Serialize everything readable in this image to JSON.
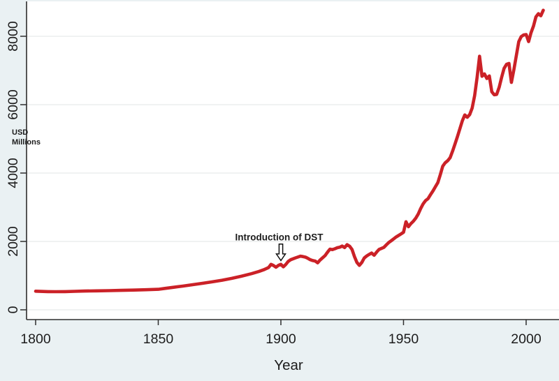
{
  "figure": {
    "background_color": "#eaf1f3",
    "plot_background": "#ffffff",
    "grid_color": "#e7e9ea",
    "axis_color": "#2e2e2e",
    "text_color": "#1c1c1c"
  },
  "chart_data": {
    "type": "line",
    "title": "",
    "xlabel": "Year",
    "ylabel": "USD Millions",
    "ylabel_lines": [
      "USD",
      "Millions"
    ],
    "legend": "none",
    "grid": true,
    "x_ticks": [
      1800,
      1850,
      1900,
      1950,
      2000
    ],
    "y_ticks": [
      0,
      2000,
      4000,
      6000,
      8000
    ],
    "xlim": [
      1796.3,
      2013.4
    ],
    "ylim": [
      -286,
      9020
    ],
    "line_color": "#cb2127",
    "annotation": {
      "text": "Introduction of DST",
      "year": 1900,
      "text_value": 2120,
      "arrow_tail_value": 1925,
      "arrow_tip_value": 1440
    },
    "series": [
      {
        "name": "USD Millions",
        "points": [
          [
            1800,
            545
          ],
          [
            1802,
            538
          ],
          [
            1805,
            532
          ],
          [
            1808,
            530
          ],
          [
            1812,
            533
          ],
          [
            1816,
            541
          ],
          [
            1820,
            548
          ],
          [
            1825,
            554
          ],
          [
            1830,
            561
          ],
          [
            1835,
            569
          ],
          [
            1840,
            578
          ],
          [
            1845,
            588
          ],
          [
            1850,
            600
          ],
          [
            1853,
            628
          ],
          [
            1856,
            656
          ],
          [
            1860,
            693
          ],
          [
            1864,
            735
          ],
          [
            1868,
            776
          ],
          [
            1872,
            818
          ],
          [
            1876,
            866
          ],
          [
            1880,
            921
          ],
          [
            1884,
            986
          ],
          [
            1888,
            1056
          ],
          [
            1891,
            1121
          ],
          [
            1893,
            1171
          ],
          [
            1895,
            1236
          ],
          [
            1896,
            1330
          ],
          [
            1897,
            1296
          ],
          [
            1898,
            1246
          ],
          [
            1899,
            1300
          ],
          [
            1900,
            1330
          ],
          [
            1901,
            1256
          ],
          [
            1902,
            1326
          ],
          [
            1903,
            1415
          ],
          [
            1904,
            1466
          ],
          [
            1906,
            1521
          ],
          [
            1908,
            1570
          ],
          [
            1909,
            1556
          ],
          [
            1910,
            1540
          ],
          [
            1911,
            1506
          ],
          [
            1912,
            1466
          ],
          [
            1913,
            1441
          ],
          [
            1914,
            1426
          ],
          [
            1915,
            1376
          ],
          [
            1916,
            1456
          ],
          [
            1917,
            1520
          ],
          [
            1918,
            1586
          ],
          [
            1919,
            1686
          ],
          [
            1920,
            1776
          ],
          [
            1921,
            1760
          ],
          [
            1922,
            1786
          ],
          [
            1923,
            1816
          ],
          [
            1924,
            1830
          ],
          [
            1925,
            1866
          ],
          [
            1926,
            1820
          ],
          [
            1927,
            1906
          ],
          [
            1928,
            1860
          ],
          [
            1929,
            1766
          ],
          [
            1930,
            1556
          ],
          [
            1931,
            1386
          ],
          [
            1932,
            1300
          ],
          [
            1933,
            1386
          ],
          [
            1934,
            1516
          ],
          [
            1935,
            1576
          ],
          [
            1936,
            1620
          ],
          [
            1937,
            1660
          ],
          [
            1938,
            1596
          ],
          [
            1939,
            1686
          ],
          [
            1940,
            1766
          ],
          [
            1941,
            1796
          ],
          [
            1942,
            1826
          ],
          [
            1943,
            1900
          ],
          [
            1944,
            1970
          ],
          [
            1945,
            2020
          ],
          [
            1946,
            2076
          ],
          [
            1947,
            2130
          ],
          [
            1948,
            2176
          ],
          [
            1949,
            2220
          ],
          [
            1950,
            2270
          ],
          [
            1951,
            2576
          ],
          [
            1952,
            2430
          ],
          [
            1953,
            2520
          ],
          [
            1954,
            2590
          ],
          [
            1955,
            2680
          ],
          [
            1956,
            2800
          ],
          [
            1957,
            2960
          ],
          [
            1958,
            3100
          ],
          [
            1959,
            3196
          ],
          [
            1960,
            3250
          ],
          [
            1961,
            3366
          ],
          [
            1962,
            3476
          ],
          [
            1963,
            3600
          ],
          [
            1964,
            3720
          ],
          [
            1965,
            3950
          ],
          [
            1966,
            4200
          ],
          [
            1967,
            4300
          ],
          [
            1968,
            4360
          ],
          [
            1969,
            4450
          ],
          [
            1970,
            4640
          ],
          [
            1971,
            4850
          ],
          [
            1972,
            5070
          ],
          [
            1973,
            5300
          ],
          [
            1974,
            5530
          ],
          [
            1975,
            5700
          ],
          [
            1976,
            5630
          ],
          [
            1977,
            5710
          ],
          [
            1978,
            5900
          ],
          [
            1979,
            6270
          ],
          [
            1980,
            6800
          ],
          [
            1981,
            7415
          ],
          [
            1982,
            6830
          ],
          [
            1983,
            6900
          ],
          [
            1984,
            6765
          ],
          [
            1985,
            6840
          ],
          [
            1986,
            6380
          ],
          [
            1987,
            6290
          ],
          [
            1988,
            6300
          ],
          [
            1989,
            6510
          ],
          [
            1990,
            6800
          ],
          [
            1991,
            7060
          ],
          [
            1992,
            7180
          ],
          [
            1993,
            7205
          ],
          [
            1994,
            6650
          ],
          [
            1995,
            7020
          ],
          [
            1996,
            7430
          ],
          [
            1997,
            7840
          ],
          [
            1998,
            7990
          ],
          [
            1999,
            8040
          ],
          [
            2000,
            8050
          ],
          [
            2001,
            7845
          ],
          [
            2002,
            8105
          ],
          [
            2003,
            8300
          ],
          [
            2004,
            8570
          ],
          [
            2005,
            8660
          ],
          [
            2006,
            8600
          ],
          [
            2007,
            8760
          ]
        ]
      }
    ]
  }
}
